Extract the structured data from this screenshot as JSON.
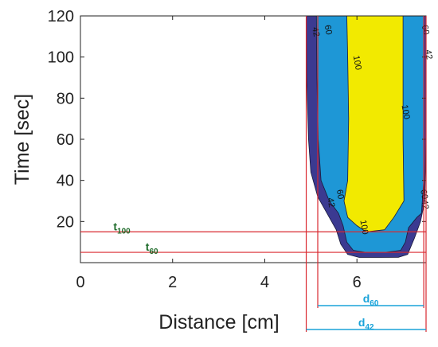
{
  "chart_data": {
    "type": "contour",
    "xlabel": "Distance [cm]",
    "ylabel": "Time [sec]",
    "xlim": [
      0,
      7.5
    ],
    "ylim": [
      0,
      120
    ],
    "x_ticks": [
      0,
      2,
      4,
      6
    ],
    "y_ticks": [
      20,
      40,
      60,
      80,
      100,
      120
    ],
    "levels": [
      42,
      60,
      100
    ],
    "level_colors": {
      "42": "#3b3a91",
      "60": "#1e97d6",
      "100": "#f2ea00"
    },
    "contours": [
      {
        "level": "42",
        "points": [
          [
            4.9,
            120
          ],
          [
            4.91,
            90
          ],
          [
            4.95,
            60
          ],
          [
            5.0,
            44
          ],
          [
            5.15,
            32
          ],
          [
            5.4,
            22
          ],
          [
            5.55,
            16
          ],
          [
            5.65,
            9
          ],
          [
            5.8,
            4
          ],
          [
            6.05,
            2.5
          ],
          [
            6.5,
            2.5
          ],
          [
            6.9,
            2.6
          ],
          [
            7.1,
            4
          ],
          [
            7.25,
            12
          ],
          [
            7.38,
            20
          ],
          [
            7.47,
            30
          ],
          [
            7.5,
            60
          ],
          [
            7.5,
            120
          ]
        ]
      },
      {
        "level": "60",
        "points": [
          [
            5.12,
            120
          ],
          [
            5.13,
            90
          ],
          [
            5.16,
            60
          ],
          [
            5.22,
            40
          ],
          [
            5.4,
            30
          ],
          [
            5.6,
            24
          ],
          [
            5.7,
            18
          ],
          [
            5.78,
            10
          ],
          [
            5.92,
            6
          ],
          [
            6.2,
            5
          ],
          [
            6.6,
            5
          ],
          [
            6.95,
            6
          ],
          [
            7.05,
            10
          ],
          [
            7.12,
            17
          ],
          [
            7.3,
            22
          ],
          [
            7.4,
            24
          ],
          [
            7.45,
            40
          ],
          [
            7.45,
            120
          ]
        ]
      },
      {
        "level": "100",
        "points": [
          [
            5.78,
            120
          ],
          [
            5.8,
            100
          ],
          [
            5.82,
            70
          ],
          [
            5.8,
            40
          ],
          [
            5.72,
            30
          ],
          [
            5.8,
            22
          ],
          [
            6.0,
            18
          ],
          [
            6.2,
            15
          ],
          [
            6.6,
            16
          ],
          [
            6.8,
            22
          ],
          [
            7.02,
            30
          ],
          [
            7.0,
            60
          ],
          [
            7.0,
            90
          ],
          [
            7.0,
            120
          ]
        ]
      }
    ],
    "contour_labels": [
      {
        "text": "42",
        "x": 5.05,
        "y": 112
      },
      {
        "text": "60",
        "x": 5.32,
        "y": 113
      },
      {
        "text": "100",
        "x": 5.95,
        "y": 97
      },
      {
        "text": "100",
        "x": 7.0,
        "y": 73
      },
      {
        "text": "60",
        "x": 7.43,
        "y": 113
      },
      {
        "text": "42",
        "x": 7.5,
        "y": 101
      },
      {
        "text": "60",
        "x": 5.58,
        "y": 33
      },
      {
        "text": "42",
        "x": 5.38,
        "y": 29
      },
      {
        "text": "100",
        "x": 6.1,
        "y": 17
      },
      {
        "text": "60",
        "x": 7.4,
        "y": 33
      },
      {
        "text": "42",
        "x": 7.42,
        "y": 28
      }
    ],
    "annotations": {
      "t100": {
        "label": "t",
        "sub": "100",
        "y": 15,
        "x_label": 0.9
      },
      "t60": {
        "label": "t",
        "sub": "60",
        "y": 5,
        "x_label": 1.55
      },
      "d60": {
        "label": "d",
        "sub": "60",
        "x_start": 5.15,
        "x_end": 7.45
      },
      "d42": {
        "label": "d",
        "sub": "42",
        "x_start": 4.9,
        "x_end": 7.5
      }
    }
  }
}
